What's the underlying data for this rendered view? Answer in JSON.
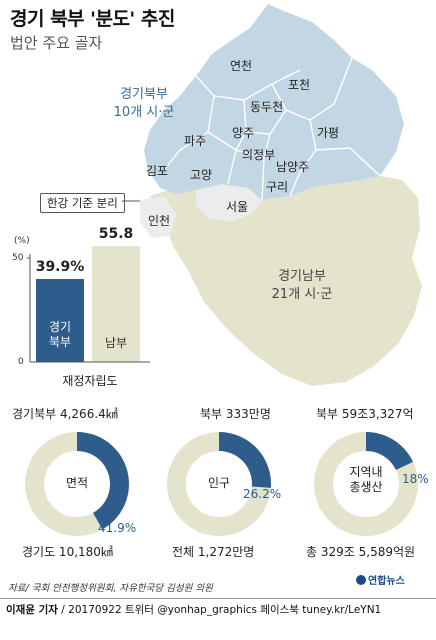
{
  "header": {
    "title": "경기 북부 '분도' 추진",
    "subtitle": "법안 주요 골자"
  },
  "map": {
    "north_label_line1": "경기북부",
    "north_label_line2": "10개 시·군",
    "south_label_line1": "경기남부",
    "south_label_line2": "21개 시·군",
    "callout": "한강 기준 분리",
    "cities": [
      "연천",
      "포천",
      "동두천",
      "파주",
      "양주",
      "가평",
      "의정부",
      "남양주",
      "김포",
      "고양",
      "구리",
      "서울",
      "인천"
    ],
    "colors": {
      "north": "#c3d6e3",
      "south": "#e4e3cc",
      "other": "#ececec"
    }
  },
  "chart_data": [
    {
      "type": "bar",
      "categories": [
        "경기북부",
        "남부"
      ],
      "values": [
        39.9,
        55.8
      ],
      "value_labels": [
        "39.9%",
        "55.8"
      ],
      "unit": "(%)",
      "ylim": [
        0,
        50
      ],
      "yticks": [
        "50",
        "0"
      ],
      "xlabel": "재정자립도",
      "in_bar_labels": [
        [
          "경기",
          "북부"
        ],
        [
          "남부"
        ]
      ],
      "colors": [
        "#2e5d8c",
        "#e4e3cc"
      ]
    },
    {
      "type": "pie",
      "center_label": [
        "면적"
      ],
      "top_label": "경기북부 4,266.4㎢",
      "bottom_label": "경기도 10,180㎢",
      "highlight_value": 41.9,
      "highlight_label": "41.9%",
      "colors": [
        "#2e5d8c",
        "#e4e3cc"
      ]
    },
    {
      "type": "pie",
      "center_label": [
        "인구"
      ],
      "top_label": "북부 333만명",
      "bottom_label": "전체 1,272만명",
      "highlight_value": 26.2,
      "highlight_label": "26.2%",
      "colors": [
        "#2e5d8c",
        "#e4e3cc"
      ]
    },
    {
      "type": "pie",
      "center_label": [
        "지역내",
        "총생산"
      ],
      "top_label": "북부 59조3,327억",
      "bottom_label": "총 329조 5,589억원",
      "highlight_value": 18,
      "highlight_label": "18%",
      "colors": [
        "#2e5d8c",
        "#e4e3cc"
      ]
    }
  ],
  "footer": {
    "source": "자료/ 국회 안전행정위원회, 자유한국당 김성원 의원",
    "logo": "연합뉴스",
    "credit_author": "이재윤 기자",
    "credit_rest": " / 20170922  트위터 @yonhap_graphics  페이스북 tuney.kr/LeYN1"
  }
}
